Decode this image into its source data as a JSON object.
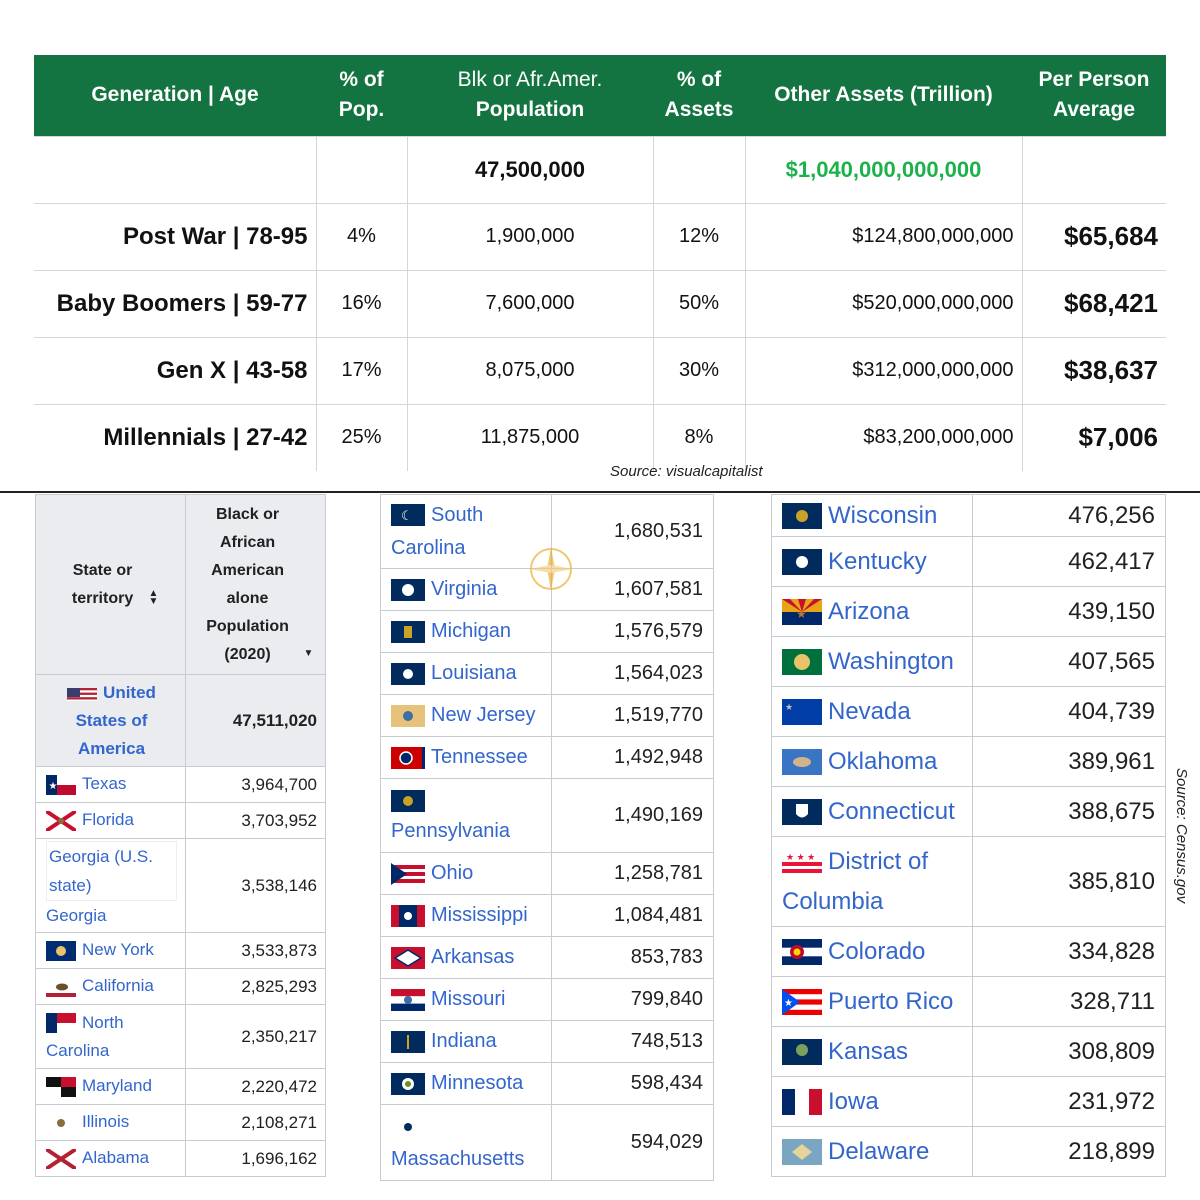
{
  "gen_table": {
    "headers": {
      "generation": "Generation | Age",
      "pct_pop": "% of Pop.",
      "population_line1": "Blk or Afr.Amer.",
      "population_line2": "Population",
      "pct_assets": "% of Assets",
      "assets": "Other Assets (Trillion)",
      "per_person": "Per Person Average"
    },
    "header_bg": "#137341",
    "totals": {
      "population": "47,500,000",
      "assets": "$1,040,000,000,000",
      "assets_color": "#1cb24b"
    },
    "rows": [
      {
        "generation": "Post War | 78-95",
        "pct_pop": "4%",
        "population": "1,900,000",
        "pct_assets": "12%",
        "assets": "$124,800,000,000",
        "per_person": "$65,684"
      },
      {
        "generation": "Baby Boomers | 59-77",
        "pct_pop": "16%",
        "population": "7,600,000",
        "pct_assets": "50%",
        "assets": "$520,000,000,000",
        "per_person": "$68,421"
      },
      {
        "generation": "Gen X | 43-58",
        "pct_pop": "17%",
        "population": "8,075,000",
        "pct_assets": "30%",
        "assets": "$312,000,000,000",
        "per_person": "$38,637"
      },
      {
        "generation": "Millennials | 27-42",
        "pct_pop": "25%",
        "population": "11,875,000",
        "pct_assets": "8%",
        "assets": "$83,200,000,000",
        "per_person": "$7,006"
      }
    ],
    "source": "Source: visualcapitalist"
  },
  "wiki_left": {
    "header_state": "State or territory",
    "header_pop": "Black or African American alone Population (2020)",
    "us": {
      "name": "United States of America",
      "value": "47,511,020"
    },
    "rows": [
      {
        "name": "Texas",
        "value": "3,964,700",
        "flag": "texas-flag-icon"
      },
      {
        "name": "Florida",
        "value": "3,703,952",
        "flag": "florida-flag-icon"
      },
      {
        "name": "Georgia",
        "value": "3,538,146",
        "flag": "broken-image-icon",
        "alt": "Georgia (U.S. state)"
      },
      {
        "name": "New York",
        "value": "3,533,873",
        "flag": "new-york-flag-icon"
      },
      {
        "name": "California",
        "value": "2,825,293",
        "flag": "california-flag-icon"
      },
      {
        "name": "North Carolina",
        "value": "2,350,217",
        "flag": "north-carolina-flag-icon"
      },
      {
        "name": "Maryland",
        "value": "2,220,472",
        "flag": "maryland-flag-icon"
      },
      {
        "name": "Illinois",
        "value": "2,108,271",
        "flag": "illinois-flag-icon"
      },
      {
        "name": "Alabama",
        "value": "1,696,162",
        "flag": "alabama-flag-icon"
      }
    ]
  },
  "wiki_mid": {
    "rows": [
      {
        "name": "South Carolina",
        "value": "1,680,531"
      },
      {
        "name": "Virginia",
        "value": "1,607,581"
      },
      {
        "name": "Michigan",
        "value": "1,576,579"
      },
      {
        "name": "Louisiana",
        "value": "1,564,023"
      },
      {
        "name": "New Jersey",
        "value": "1,519,770"
      },
      {
        "name": "Tennessee",
        "value": "1,492,948"
      },
      {
        "name": "Pennsylvania",
        "value": "1,490,169"
      },
      {
        "name": "Ohio",
        "value": "1,258,781"
      },
      {
        "name": "Mississippi",
        "value": "1,084,481"
      },
      {
        "name": "Arkansas",
        "value": "853,783"
      },
      {
        "name": "Missouri",
        "value": "799,840"
      },
      {
        "name": "Indiana",
        "value": "748,513"
      },
      {
        "name": "Minnesota",
        "value": "598,434"
      },
      {
        "name": "Massachusetts",
        "value": "594,029"
      }
    ]
  },
  "wiki_right": {
    "rows": [
      {
        "name": "Wisconsin",
        "value": "476,256"
      },
      {
        "name": "Kentucky",
        "value": "462,417"
      },
      {
        "name": "Arizona",
        "value": "439,150"
      },
      {
        "name": "Washington",
        "value": "407,565"
      },
      {
        "name": "Nevada",
        "value": "404,739"
      },
      {
        "name": "Oklahoma",
        "value": "389,961"
      },
      {
        "name": "Connecticut",
        "value": "388,675"
      },
      {
        "name": "District of Columbia",
        "value": "385,810"
      },
      {
        "name": "Colorado",
        "value": "334,828"
      },
      {
        "name": "Puerto Rico",
        "value": "328,711"
      },
      {
        "name": "Kansas",
        "value": "308,809"
      },
      {
        "name": "Iowa",
        "value": "231,972"
      },
      {
        "name": "Delaware",
        "value": "218,899"
      }
    ],
    "source": "Source: Census.gov"
  }
}
